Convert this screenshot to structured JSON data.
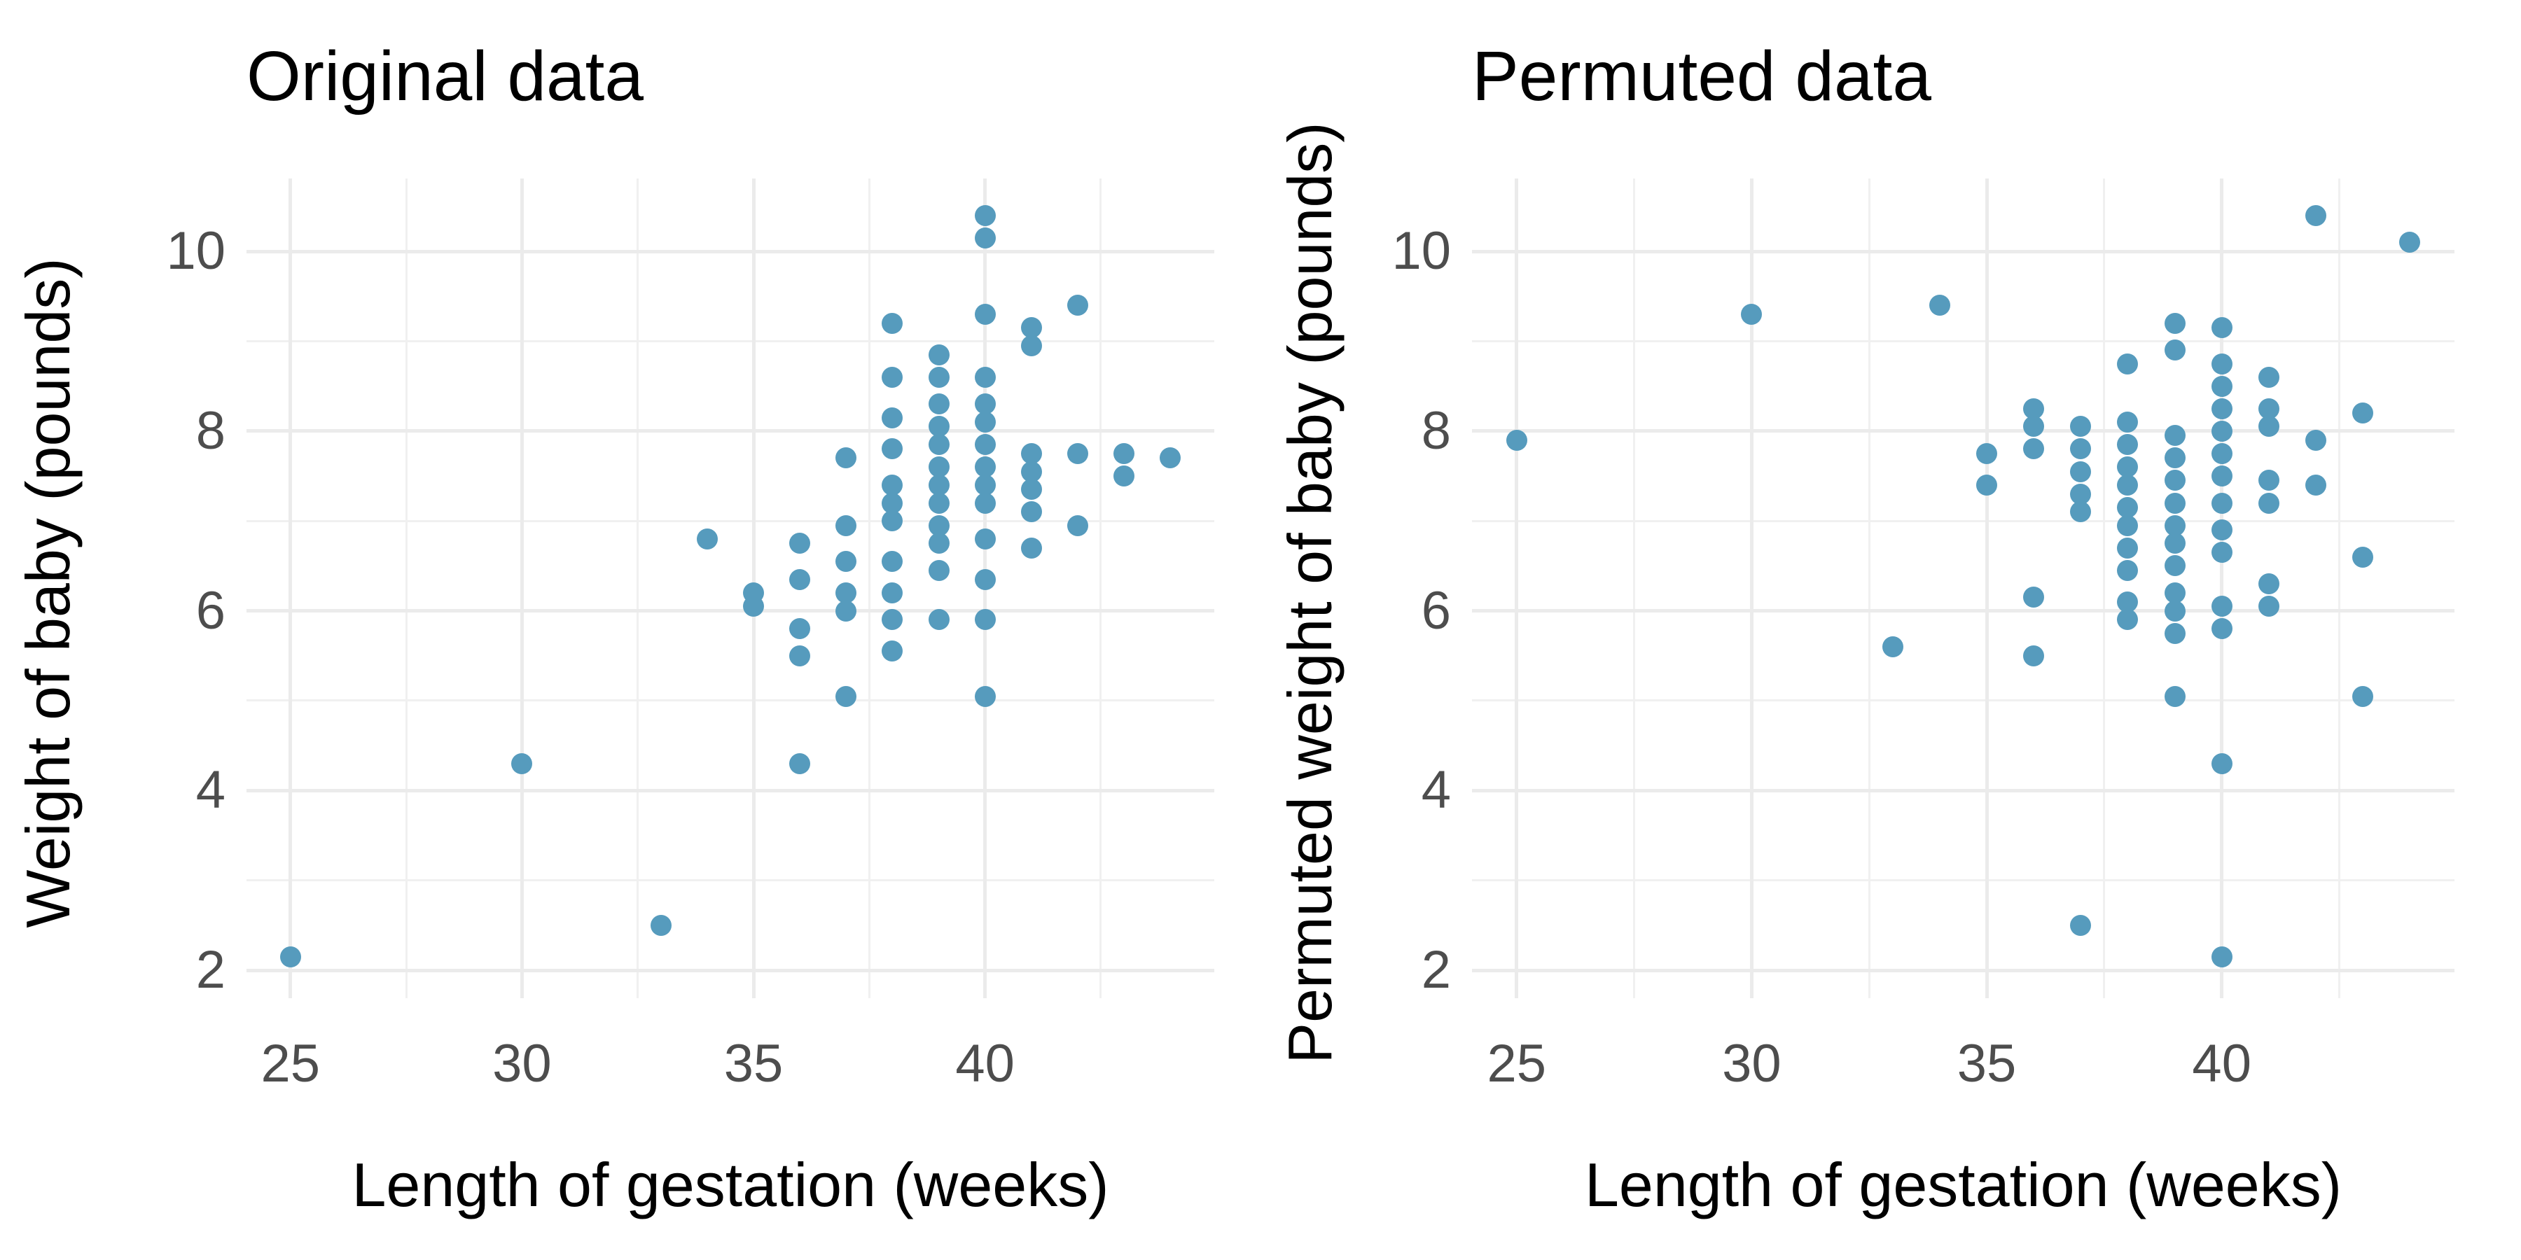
{
  "figure": {
    "point_color": "#569BBD",
    "grid_major_color": "#EBEBEB",
    "grid_minor_color": "#F0F0F0",
    "tick_label_color": "#4D4D4D",
    "title_color": "#000000",
    "background_color": "#FFFFFF"
  },
  "chart_data": [
    {
      "type": "scatter",
      "title": "Original data",
      "xlabel": "Length of gestation (weeks)",
      "ylabel": "Weight of baby (pounds)",
      "xlim": [
        24.05,
        44.95
      ],
      "ylim": [
        1.69,
        10.81
      ],
      "x_major_ticks": [
        25,
        30,
        35,
        40
      ],
      "x_minor_ticks": [
        27.5,
        32.5,
        37.5,
        42.5
      ],
      "y_major_ticks": [
        2,
        4,
        6,
        8,
        10
      ],
      "y_minor_ticks": [
        3,
        5,
        7,
        9
      ],
      "grid": true,
      "legend": "none",
      "points": [
        [
          25,
          2.15
        ],
        [
          30,
          4.3
        ],
        [
          33,
          2.5
        ],
        [
          34,
          6.8
        ],
        [
          35,
          6.2
        ],
        [
          35,
          6.05
        ],
        [
          36,
          6.75
        ],
        [
          36,
          6.35
        ],
        [
          36,
          5.8
        ],
        [
          36,
          5.5
        ],
        [
          36,
          4.3
        ],
        [
          37,
          7.7
        ],
        [
          37,
          6.95
        ],
        [
          37,
          6.55
        ],
        [
          37,
          6.2
        ],
        [
          37,
          6.0
        ],
        [
          37,
          5.05
        ],
        [
          38,
          9.2
        ],
        [
          38,
          8.6
        ],
        [
          38,
          8.15
        ],
        [
          38,
          7.8
        ],
        [
          38,
          7.4
        ],
        [
          38,
          7.2
        ],
        [
          38,
          7.0
        ],
        [
          38,
          6.55
        ],
        [
          38,
          6.2
        ],
        [
          38,
          5.9
        ],
        [
          38,
          5.55
        ],
        [
          39,
          8.85
        ],
        [
          39,
          8.6
        ],
        [
          39,
          8.3
        ],
        [
          39,
          8.05
        ],
        [
          39,
          7.85
        ],
        [
          39,
          7.6
        ],
        [
          39,
          7.4
        ],
        [
          39,
          7.2
        ],
        [
          39,
          6.95
        ],
        [
          39,
          6.75
        ],
        [
          39,
          6.45
        ],
        [
          39,
          5.9
        ],
        [
          40,
          10.4
        ],
        [
          40,
          10.15
        ],
        [
          40,
          9.3
        ],
        [
          40,
          8.6
        ],
        [
          40,
          8.3
        ],
        [
          40,
          8.1
        ],
        [
          40,
          7.85
        ],
        [
          40,
          7.6
        ],
        [
          40,
          7.4
        ],
        [
          40,
          7.2
        ],
        [
          40,
          6.8
        ],
        [
          40,
          6.35
        ],
        [
          40,
          5.9
        ],
        [
          40,
          5.05
        ],
        [
          41,
          9.15
        ],
        [
          41,
          8.95
        ],
        [
          41,
          7.75
        ],
        [
          41,
          7.55
        ],
        [
          41,
          7.35
        ],
        [
          41,
          7.1
        ],
        [
          41,
          6.7
        ],
        [
          42,
          9.4
        ],
        [
          42,
          7.75
        ],
        [
          42,
          6.95
        ],
        [
          43,
          7.75
        ],
        [
          43,
          7.5
        ],
        [
          44,
          7.7
        ]
      ]
    },
    {
      "type": "scatter",
      "title": "Permuted data",
      "xlabel": "Length of gestation (weeks)",
      "ylabel": "Permuted weight of baby (pounds)",
      "xlim": [
        24.05,
        44.95
      ],
      "ylim": [
        1.69,
        10.81
      ],
      "x_major_ticks": [
        25,
        30,
        35,
        40
      ],
      "x_minor_ticks": [
        27.5,
        32.5,
        37.5,
        42.5
      ],
      "y_major_ticks": [
        2,
        4,
        6,
        8,
        10
      ],
      "y_minor_ticks": [
        3,
        5,
        7,
        9
      ],
      "grid": true,
      "legend": "none",
      "points": [
        [
          25,
          7.9
        ],
        [
          30,
          9.3
        ],
        [
          33,
          5.6
        ],
        [
          34,
          9.4
        ],
        [
          35,
          7.75
        ],
        [
          35,
          7.4
        ],
        [
          36,
          8.25
        ],
        [
          36,
          8.05
        ],
        [
          36,
          7.8
        ],
        [
          36,
          6.15
        ],
        [
          36,
          5.5
        ],
        [
          37,
          8.05
        ],
        [
          37,
          7.8
        ],
        [
          37,
          7.55
        ],
        [
          37,
          7.3
        ],
        [
          37,
          7.1
        ],
        [
          37,
          2.5
        ],
        [
          38,
          8.75
        ],
        [
          38,
          8.1
        ],
        [
          38,
          7.85
        ],
        [
          38,
          7.6
        ],
        [
          38,
          7.4
        ],
        [
          38,
          7.15
        ],
        [
          38,
          6.95
        ],
        [
          38,
          6.7
        ],
        [
          38,
          6.45
        ],
        [
          38,
          6.1
        ],
        [
          38,
          5.9
        ],
        [
          39,
          9.2
        ],
        [
          39,
          8.9
        ],
        [
          39,
          7.95
        ],
        [
          39,
          7.7
        ],
        [
          39,
          7.45
        ],
        [
          39,
          7.2
        ],
        [
          39,
          6.95
        ],
        [
          39,
          6.75
        ],
        [
          39,
          6.5
        ],
        [
          39,
          6.2
        ],
        [
          39,
          6.0
        ],
        [
          39,
          5.75
        ],
        [
          39,
          5.05
        ],
        [
          40,
          9.15
        ],
        [
          40,
          8.75
        ],
        [
          40,
          8.5
        ],
        [
          40,
          8.25
        ],
        [
          40,
          8.0
        ],
        [
          40,
          7.75
        ],
        [
          40,
          7.5
        ],
        [
          40,
          7.2
        ],
        [
          40,
          6.9
        ],
        [
          40,
          6.65
        ],
        [
          40,
          6.05
        ],
        [
          40,
          5.8
        ],
        [
          40,
          4.3
        ],
        [
          40,
          2.15
        ],
        [
          41,
          8.6
        ],
        [
          41,
          8.25
        ],
        [
          41,
          8.05
        ],
        [
          41,
          7.45
        ],
        [
          41,
          7.2
        ],
        [
          41,
          6.3
        ],
        [
          41,
          6.05
        ],
        [
          42,
          10.4
        ],
        [
          42,
          7.9
        ],
        [
          42,
          7.4
        ],
        [
          43,
          8.2
        ],
        [
          43,
          6.6
        ],
        [
          43,
          5.05
        ],
        [
          44,
          10.1
        ]
      ]
    }
  ]
}
